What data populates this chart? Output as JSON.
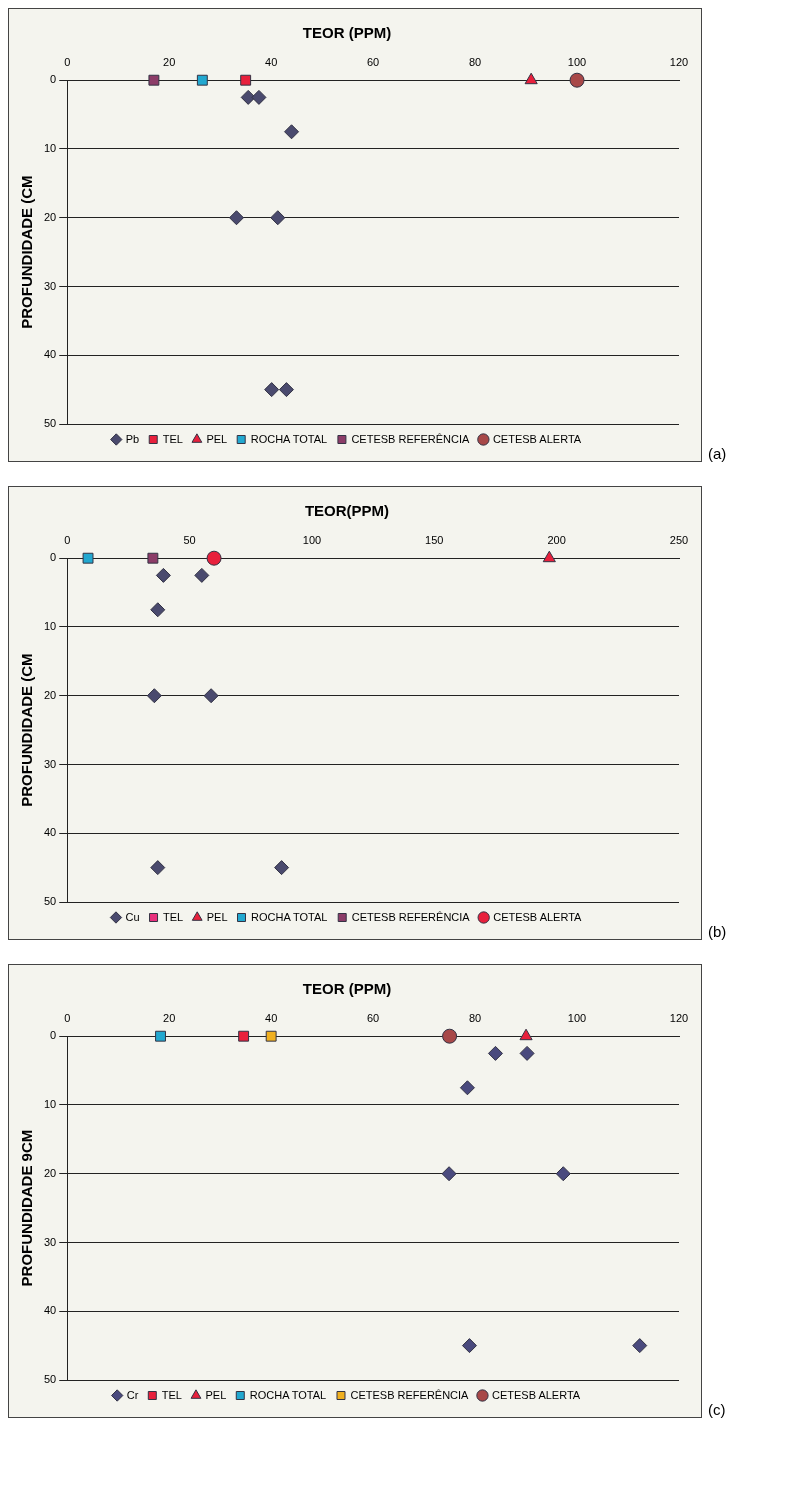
{
  "chart_data": [
    {
      "type": "scatter",
      "title": "TEOR (PPM)",
      "ylabel": "PROFUNDIDADE (CM",
      "xlim": [
        0,
        120
      ],
      "xticks": [
        0,
        20,
        40,
        60,
        80,
        100,
        120
      ],
      "ylim": [
        50,
        0
      ],
      "yticks": [
        0,
        10,
        20,
        30,
        40,
        50
      ],
      "grid": "y",
      "legend": "bottom",
      "annotations": [
        "(a)"
      ],
      "series": [
        {
          "name": "Pb",
          "color": "#4a4a6e",
          "marker": "diamond",
          "x": [
            35.5,
            37.6,
            44,
            33.2,
            41.3,
            40.1,
            43
          ],
          "values": [
            2.5,
            2.5,
            7.5,
            20,
            20,
            45,
            45
          ]
        },
        {
          "name": "TEL",
          "color": "#e8203c",
          "marker": "square",
          "x": [
            35
          ],
          "values": [
            0
          ]
        },
        {
          "name": "PEL",
          "color": "#e8203c",
          "marker": "triangle",
          "x": [
            91
          ],
          "values": [
            0
          ]
        },
        {
          "name": "ROCHA TOTAL",
          "color": "#22a8d0",
          "marker": "square",
          "x": [
            26.5
          ],
          "values": [
            0
          ]
        },
        {
          "name": "CETESB REFERÊNCIA",
          "color": "#8c3c68",
          "marker": "square",
          "x": [
            17
          ],
          "values": [
            0
          ]
        },
        {
          "name": "CETESB ALERTA",
          "color": "#a84848",
          "marker": "circle",
          "x": [
            100
          ],
          "values": [
            0
          ]
        }
      ]
    },
    {
      "type": "scatter",
      "title": "TEOR(PPM)",
      "ylabel": "PROFUNDIDADE (CM",
      "xlim": [
        0,
        250
      ],
      "xticks": [
        0,
        50,
        100,
        150,
        200,
        250
      ],
      "ylim": [
        50,
        0
      ],
      "yticks": [
        0,
        10,
        20,
        30,
        40,
        50
      ],
      "grid": "y",
      "legend": "bottom",
      "annotations": [
        "(b)"
      ],
      "series": [
        {
          "name": "Cu",
          "color": "#4a4a6e",
          "marker": "diamond",
          "x": [
            39.3,
            55,
            37,
            35.6,
            58.8,
            37,
            87.6
          ],
          "values": [
            2.5,
            2.5,
            7.5,
            20,
            20,
            45,
            45
          ]
        },
        {
          "name": "TEL",
          "color": "#e8307c",
          "marker": "square",
          "x": [
            null
          ],
          "values": [
            null
          ]
        },
        {
          "name": "PEL",
          "color": "#e8203c",
          "marker": "triangle",
          "x": [
            197
          ],
          "values": [
            0
          ]
        },
        {
          "name": "ROCHA TOTAL",
          "color": "#22a8d0",
          "marker": "square",
          "x": [
            8.5
          ],
          "values": [
            0
          ]
        },
        {
          "name": "CETESB REFERÊNCIA",
          "color": "#8c3c68",
          "marker": "square",
          "x": [
            35
          ],
          "values": [
            0
          ]
        },
        {
          "name": "CETESB ALERTA",
          "color": "#e8203c",
          "marker": "circle",
          "x": [
            60
          ],
          "values": [
            0
          ]
        }
      ]
    },
    {
      "type": "scatter",
      "title": "TEOR (PPM)",
      "ylabel": "PROFUNDIDADE 9CM",
      "xlim": [
        0,
        120
      ],
      "xticks": [
        0,
        20,
        40,
        60,
        80,
        100,
        120
      ],
      "ylim": [
        50,
        0
      ],
      "yticks": [
        0,
        10,
        20,
        30,
        40,
        50
      ],
      "grid": "y",
      "legend": "bottom",
      "annotations": [
        "(c)"
      ],
      "series": [
        {
          "name": "Cr",
          "color": "#4a4a7e",
          "marker": "diamond",
          "x": [
            84,
            90.2,
            78.5,
            74.9,
            97.3,
            78.9,
            112.3
          ],
          "values": [
            2.5,
            2.5,
            7.5,
            20,
            20,
            45,
            45
          ]
        },
        {
          "name": "TEL",
          "color": "#e8203c",
          "marker": "square",
          "x": [
            34.6
          ],
          "values": [
            0
          ]
        },
        {
          "name": "PEL",
          "color": "#e8203c",
          "marker": "triangle",
          "x": [
            90
          ],
          "values": [
            0
          ]
        },
        {
          "name": "ROCHA TOTAL",
          "color": "#22a8d0",
          "marker": "square",
          "x": [
            18.3
          ],
          "values": [
            0
          ]
        },
        {
          "name": "CETESB REFERÊNCIA",
          "color": "#f0b020",
          "marker": "square",
          "x": [
            40
          ],
          "values": [
            0
          ]
        },
        {
          "name": "CETESB ALERTA",
          "color": "#a84848",
          "marker": "circle",
          "x": [
            75
          ],
          "values": [
            0
          ]
        }
      ]
    }
  ]
}
